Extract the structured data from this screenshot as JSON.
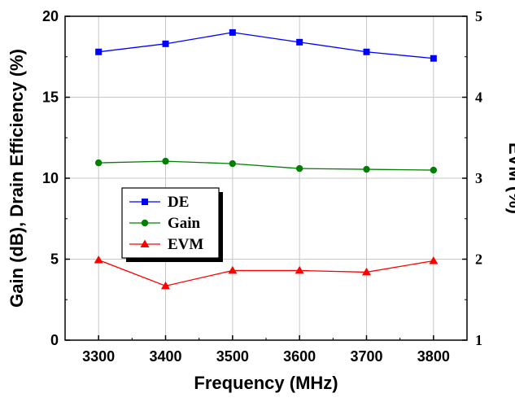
{
  "chart_data": {
    "type": "line",
    "title": "",
    "xlabel": "Frequency (MHz)",
    "ylabel": "Gain (dB), Drain Efficiency (%)",
    "y2label": "EVM (%)",
    "x": [
      3300,
      3400,
      3500,
      3600,
      3700,
      3800
    ],
    "x_ticks": [
      "3300",
      "3400",
      "3500",
      "3600",
      "3700",
      "3800"
    ],
    "xlim": [
      3250,
      3850
    ],
    "ylim": [
      0,
      20
    ],
    "y_ticks": [
      "0",
      "5",
      "10",
      "15",
      "20"
    ],
    "y2lim": [
      1,
      5
    ],
    "y2_ticks": [
      "1",
      "2",
      "3",
      "4",
      "5"
    ],
    "grid": true,
    "legend_position": "center-left",
    "series": [
      {
        "name": "DE",
        "axis": "left",
        "color": "#0000ff",
        "marker": "square",
        "values": [
          17.8,
          18.3,
          19.0,
          18.4,
          17.8,
          17.4
        ]
      },
      {
        "name": "Gain",
        "axis": "left",
        "color": "#008000",
        "marker": "circle",
        "values": [
          10.95,
          11.05,
          10.9,
          10.6,
          10.55,
          10.5
        ]
      },
      {
        "name": "EVM",
        "axis": "right",
        "color": "#ff0000",
        "marker": "triangle",
        "values": [
          1.99,
          1.67,
          1.86,
          1.86,
          1.84,
          1.98
        ]
      }
    ]
  }
}
